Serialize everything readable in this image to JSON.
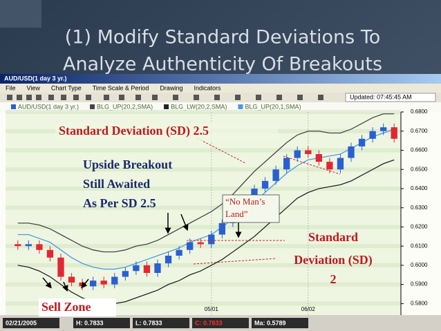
{
  "slide": {
    "title_lines": [
      "(1) Modify Standard Deviations To",
      "Analyze Authenticity Of Breakouts"
    ]
  },
  "window": {
    "title": "AUD/USD(1 day 3 yr.)",
    "menu": [
      "File",
      "View",
      "Chart Type",
      "Time Scale & Period",
      "Drawing",
      "Indicators"
    ],
    "updated": "Updated: 07:45:45 AM"
  },
  "chart_data": {
    "type": "candlestick",
    "categories": [
      null,
      null,
      null,
      null,
      null,
      null,
      null,
      null,
      null,
      null,
      null,
      null,
      null,
      null,
      null,
      null,
      null,
      null,
      "05/01",
      null,
      null,
      null,
      null,
      null,
      null,
      null,
      null,
      "06/02",
      null,
      null,
      null,
      null,
      null,
      null,
      null,
      null
    ],
    "series": [
      {
        "name": "AUD/USD(1 day 3 yr.)",
        "color": "#2a5fd0",
        "down_color": "#e02834",
        "values": [
          [
            0.611,
            0.613,
            0.608,
            0.61
          ],
          [
            0.61,
            0.613,
            0.608,
            0.611
          ],
          [
            0.611,
            0.613,
            0.606,
            0.608
          ],
          [
            0.608,
            0.61,
            0.602,
            0.604
          ],
          [
            0.604,
            0.606,
            0.592,
            0.594
          ],
          [
            0.594,
            0.596,
            0.589,
            0.591
          ],
          [
            0.591,
            0.593,
            0.587,
            0.589
          ],
          [
            0.589,
            0.594,
            0.587,
            0.592
          ],
          [
            0.592,
            0.594,
            0.588,
            0.59
          ],
          [
            0.59,
            0.596,
            0.588,
            0.594
          ],
          [
            0.594,
            0.599,
            0.592,
            0.597
          ],
          [
            0.597,
            0.602,
            0.595,
            0.6
          ],
          [
            0.6,
            0.602,
            0.594,
            0.596
          ],
          [
            0.596,
            0.603,
            0.594,
            0.601
          ],
          [
            0.601,
            0.607,
            0.599,
            0.605
          ],
          [
            0.605,
            0.61,
            0.603,
            0.608
          ],
          [
            0.608,
            0.614,
            0.606,
            0.612
          ],
          [
            0.612,
            0.614,
            0.609,
            0.611
          ],
          [
            0.611,
            0.618,
            0.609,
            0.616
          ],
          [
            0.616,
            0.624,
            0.614,
            0.622
          ],
          [
            0.622,
            0.63,
            0.62,
            0.628
          ],
          [
            0.628,
            0.636,
            0.626,
            0.634
          ],
          [
            0.634,
            0.642,
            0.632,
            0.64
          ],
          [
            0.64,
            0.646,
            0.638,
            0.644
          ],
          [
            0.644,
            0.652,
            0.642,
            0.65
          ],
          [
            0.65,
            0.658,
            0.648,
            0.656
          ],
          [
            0.656,
            0.662,
            0.654,
            0.66
          ],
          [
            0.66,
            0.662,
            0.656,
            0.658
          ],
          [
            0.658,
            0.66,
            0.652,
            0.654
          ],
          [
            0.654,
            0.656,
            0.648,
            0.65
          ],
          [
            0.65,
            0.658,
            0.648,
            0.656
          ],
          [
            0.656,
            0.664,
            0.654,
            0.662
          ],
          [
            0.662,
            0.668,
            0.66,
            0.666
          ],
          [
            0.666,
            0.672,
            0.664,
            0.67
          ],
          [
            0.67,
            0.674,
            0.668,
            0.672
          ],
          [
            0.672,
            0.674,
            0.664,
            0.666
          ]
        ]
      },
      {
        "name": "BLG_UP(20,2,SMA)",
        "color": "#444444",
        "values": [
          0.622,
          0.622,
          0.621,
          0.619,
          0.616,
          0.613,
          0.61,
          0.608,
          0.607,
          0.607,
          0.608,
          0.61,
          0.611,
          0.613,
          0.616,
          0.619,
          0.622,
          0.625,
          0.628,
          0.632,
          0.637,
          0.643,
          0.649,
          0.654,
          0.659,
          0.664,
          0.668,
          0.67,
          0.67,
          0.669,
          0.669,
          0.671,
          0.674,
          0.677,
          0.679,
          0.679
        ]
      },
      {
        "name": "BLG_LW(20,2,SMA)",
        "color": "#222222",
        "values": [
          0.6,
          0.599,
          0.597,
          0.594,
          0.59,
          0.586,
          0.583,
          0.581,
          0.58,
          0.58,
          0.581,
          0.583,
          0.585,
          0.587,
          0.59,
          0.592,
          0.595,
          0.597,
          0.6,
          0.603,
          0.607,
          0.611,
          0.615,
          0.62,
          0.625,
          0.63,
          0.635,
          0.638,
          0.64,
          0.641,
          0.642,
          0.644,
          0.647,
          0.65,
          0.653,
          0.655
        ]
      },
      {
        "name": "BLG_UP(20,1,SMA)",
        "color": "#4a9ae0",
        "values": [
          0.616,
          0.616,
          0.614,
          0.612,
          0.608,
          0.604,
          0.601,
          0.599,
          0.598,
          0.598,
          0.599,
          0.601,
          0.603,
          0.605,
          0.607,
          0.609,
          0.612,
          0.614,
          0.616,
          0.62,
          0.624,
          0.628,
          0.633,
          0.638,
          0.643,
          0.648,
          0.652,
          0.655,
          0.656,
          0.657,
          0.658,
          0.661,
          0.664,
          0.667,
          0.669,
          0.671
        ]
      }
    ],
    "ylim": [
      0.574,
      0.68
    ],
    "yticks": [
      {
        "value": 0.68,
        "label": "0.6800"
      },
      {
        "value": 0.67,
        "label": "0.6700"
      },
      {
        "value": 0.66,
        "label": "0.6600"
      },
      {
        "value": 0.65,
        "label": "0.6500"
      },
      {
        "value": 0.64,
        "label": "0.6400"
      },
      {
        "value": 0.63,
        "label": "0.6300"
      },
      {
        "value": 0.62,
        "label": "0.6200"
      },
      {
        "value": 0.61,
        "label": "0.6100"
      },
      {
        "value": 0.6,
        "label": "0.6000"
      },
      {
        "value": 0.59,
        "label": "0.5900"
      },
      {
        "value": 0.58,
        "label": "0.5800"
      }
    ],
    "grid": true
  },
  "annotations": {
    "sd25": "Standard Deviation (SD) 2.5",
    "breakout": [
      "Upside Breakout",
      "Still Awaited",
      "As Per SD 2.5"
    ],
    "no_mans_land": [
      "“No Man’s",
      "Land”"
    ],
    "sd2": [
      "Standard",
      "Deviation (SD)",
      "2"
    ],
    "sell_zone": "Sell Zone"
  },
  "status": [
    "02/21/2005",
    "H: 0.7833",
    "L: 0.7833",
    "C: 0.7833",
    "Ma: 0.5789"
  ]
}
